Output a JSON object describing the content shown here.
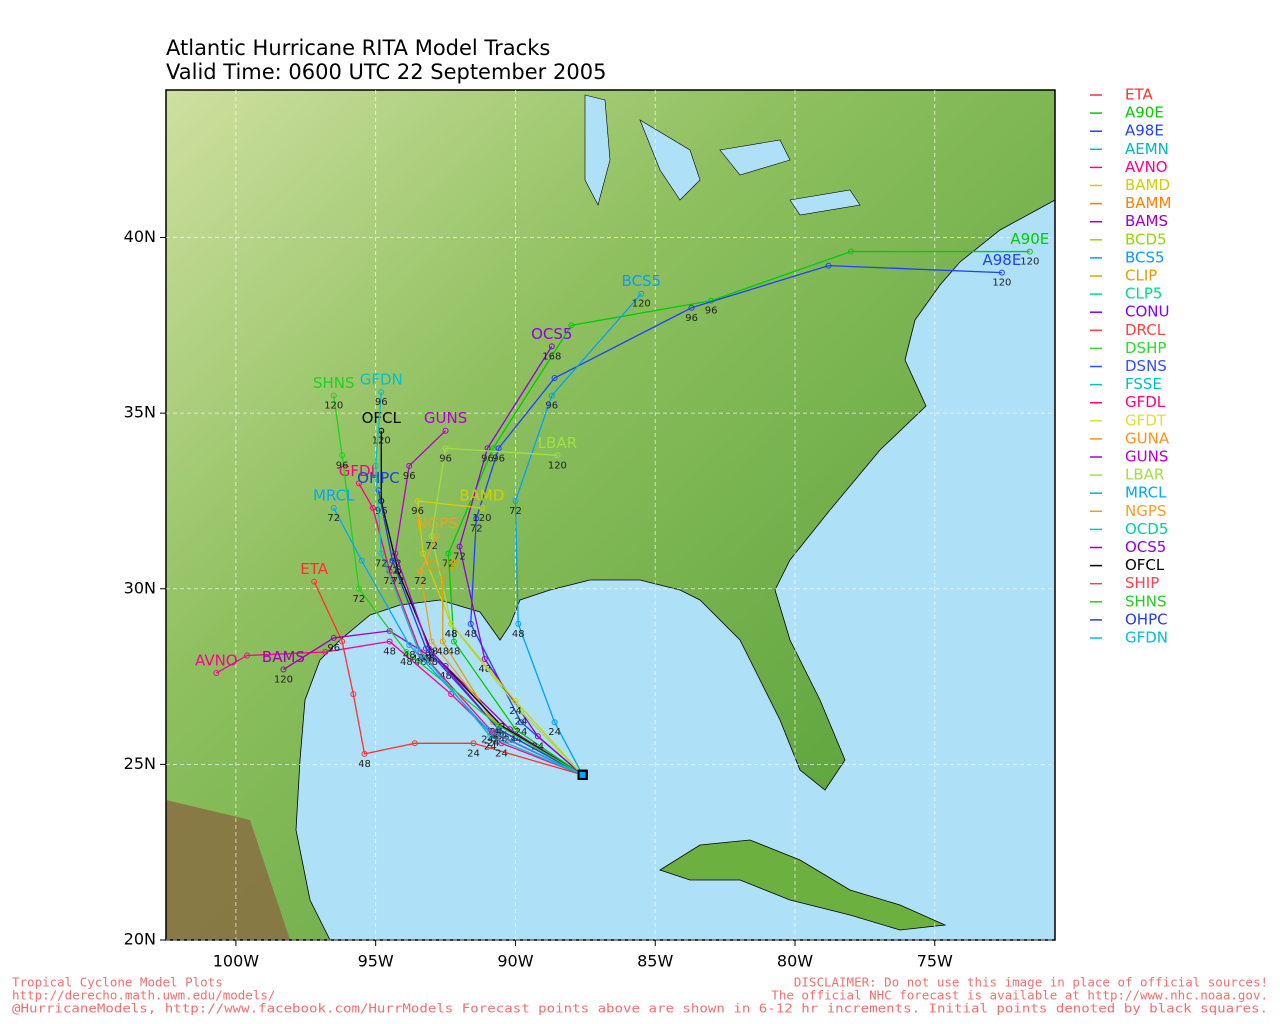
{
  "title": [
    "Atlantic Hurricane RITA Model Tracks",
    "Valid Time: 0600 UTC 22 September 2005"
  ],
  "map": {
    "lonlim": [
      -102.5,
      -70.7
    ],
    "latlim": [
      20,
      44.2
    ],
    "lonticks": [
      {
        "value": -100,
        "label": "100W"
      },
      {
        "value": -95,
        "label": "95W"
      },
      {
        "value": -90,
        "label": "90W"
      },
      {
        "value": -85,
        "label": "85W"
      },
      {
        "value": -80,
        "label": "80W"
      },
      {
        "value": -75,
        "label": "75W"
      }
    ],
    "latticks": [
      {
        "value": 20,
        "label": "20N"
      },
      {
        "value": 25,
        "label": "25N"
      },
      {
        "value": 30,
        "label": "30N"
      },
      {
        "value": 35,
        "label": "35N"
      },
      {
        "value": 40,
        "label": "40N"
      }
    ],
    "grid": true
  },
  "legend": [
    {
      "name": "ETA",
      "color": "#ff3030"
    },
    {
      "name": "A90E",
      "color": "#00cc00"
    },
    {
      "name": "A98E",
      "color": "#2040ff"
    },
    {
      "name": "AEMN",
      "color": "#00b8b8"
    },
    {
      "name": "AVNO",
      "color": "#ff0090"
    },
    {
      "name": "BAMD",
      "color": "#d0d000"
    },
    {
      "name": "BAMM",
      "color": "#ff8000"
    },
    {
      "name": "BAMS",
      "color": "#a000c0"
    },
    {
      "name": "BCD5",
      "color": "#90d800"
    },
    {
      "name": "BCS5",
      "color": "#00a0ff"
    },
    {
      "name": "CLIP",
      "color": "#e0a000"
    },
    {
      "name": "CLP5",
      "color": "#00d890"
    },
    {
      "name": "CONU",
      "color": "#8000ff"
    },
    {
      "name": "DRCL",
      "color": "#ff4040"
    },
    {
      "name": "DSHP",
      "color": "#30d830"
    },
    {
      "name": "DSNS",
      "color": "#3050ff"
    },
    {
      "name": "FSSE",
      "color": "#00c0c0"
    },
    {
      "name": "GFDL",
      "color": "#ff0080"
    },
    {
      "name": "GFDT",
      "color": "#e0e030"
    },
    {
      "name": "GUNA",
      "color": "#ff9020"
    },
    {
      "name": "GUNS",
      "color": "#b000d0"
    },
    {
      "name": "LBAR",
      "color": "#a0e040"
    },
    {
      "name": "MRCL",
      "color": "#00a8ff"
    },
    {
      "name": "NGPS",
      "color": "#f0a020"
    },
    {
      "name": "OCD5",
      "color": "#00d0a0"
    },
    {
      "name": "OCS5",
      "color": "#9000e0"
    },
    {
      "name": "OFCL",
      "color": "#000000"
    },
    {
      "name": "SHIP",
      "color": "#ff4050"
    },
    {
      "name": "SHNS",
      "color": "#20d020"
    },
    {
      "name": "OHPC",
      "color": "#2040e0"
    },
    {
      "name": "GFDN",
      "color": "#00c0d0"
    }
  ],
  "tracks": [
    {
      "name": "ETA",
      "lon": [
        -87.6,
        -91.5,
        -93.6,
        -95.4,
        -95.8,
        -96.2,
        -97.2
      ],
      "lat": [
        24.7,
        25.6,
        25.6,
        25.3,
        27,
        28.5,
        30.2
      ],
      "hours": [
        null,
        24,
        null,
        48,
        null,
        null,
        null
      ]
    },
    {
      "name": "AVNO",
      "lon": [
        -87.6,
        -90.5,
        -92.3,
        -94.5,
        -96.8,
        -99.6,
        -100.7
      ],
      "lat": [
        24.7,
        25.6,
        27,
        28.5,
        28.2,
        28.1,
        27.6
      ],
      "hours": [
        null,
        24,
        null,
        48,
        null,
        null,
        null
      ]
    },
    {
      "name": "BAMS",
      "lon": [
        -87.6,
        -90.2,
        -92.5,
        -94.5,
        -96.5,
        -98.3
      ],
      "lat": [
        24.7,
        26,
        27.8,
        28.8,
        28.6,
        27.7
      ],
      "hours": [
        null,
        24,
        48,
        null,
        96,
        120
      ]
    },
    {
      "name": "A90E",
      "lon": [
        -87.6,
        -90,
        -92.2,
        -92.4,
        -90.8,
        -88,
        -83,
        -78,
        -71.6
      ],
      "lat": [
        24.7,
        26,
        28.5,
        31,
        34,
        37.5,
        38.2,
        39.6,
        39.6
      ],
      "hours": [
        null,
        24,
        48,
        72,
        null,
        null,
        96,
        null,
        120
      ]
    },
    {
      "name": "A98E",
      "lon": [
        -87.6,
        -89.8,
        -91.6,
        -91.4,
        -90.6,
        -88.6,
        -83.7,
        -78.8,
        -72.6
      ],
      "lat": [
        24.7,
        26.2,
        29,
        32,
        34,
        36,
        38,
        39.2,
        39
      ],
      "hours": [
        null,
        24,
        48,
        72,
        96,
        null,
        96,
        null,
        120
      ]
    },
    {
      "name": "BCS5",
      "lon": [
        -87.6,
        -88.6,
        -89.9,
        -90,
        -88.7,
        -85.5
      ],
      "lat": [
        24.7,
        26.2,
        29,
        32.5,
        35.5,
        38.4
      ],
      "hours": [
        null,
        24,
        48,
        72,
        96,
        120
      ]
    },
    {
      "name": "OCS5",
      "lon": [
        -87.6,
        -89.2,
        -91.1,
        -92,
        -91,
        -88.7
      ],
      "lat": [
        24.7,
        25.8,
        28,
        31.2,
        34,
        36.9
      ],
      "hours": [
        null,
        24,
        48,
        72,
        96,
        168
      ]
    },
    {
      "name": "LBAR",
      "lon": [
        -87.6,
        -89.8,
        -92.3,
        -93,
        -92.5,
        -88.5
      ],
      "lat": [
        24.7,
        26.5,
        29,
        31.5,
        34,
        33.8
      ],
      "hours": [
        null,
        24,
        48,
        72,
        96,
        120
      ]
    },
    {
      "name": "BAMD",
      "lon": [
        -87.6,
        -90,
        -92.3,
        -93.3,
        -93.5,
        -91.2
      ],
      "lat": [
        24.7,
        26.8,
        29,
        31,
        32.5,
        32.3
      ],
      "hours": [
        null,
        24,
        48,
        null,
        96,
        120
      ]
    },
    {
      "name": "NGPS",
      "lon": [
        -87.6,
        -90.7,
        -93,
        -93.4,
        -92.8
      ],
      "lat": [
        24.7,
        26.2,
        28.5,
        30.5,
        31.5
      ],
      "hours": [
        null,
        24,
        48,
        72,
        null
      ]
    },
    {
      "name": "CLIP",
      "lon": [
        -87.6,
        -90.8,
        -92.6,
        -92.6
      ],
      "lat": [
        24.7,
        26.2,
        28.5,
        30.3
      ],
      "hours": [
        null,
        24,
        48,
        null
      ]
    },
    {
      "name": "OFCL",
      "lon": [
        -87.6,
        -90.5,
        -93,
        -94.2,
        -94.8,
        -94.8
      ],
      "lat": [
        24.7,
        26.1,
        28.2,
        30.5,
        32.5,
        34.5
      ],
      "hours": [
        null,
        24,
        48,
        72,
        96,
        120
      ]
    },
    {
      "name": "GUNS",
      "lon": [
        -87.6,
        -90.6,
        -93.1,
        -94.3,
        -93.8,
        -92.5
      ],
      "lat": [
        24.7,
        26,
        28.3,
        31,
        33.5,
        34.5
      ],
      "hours": [
        null,
        24,
        48,
        72,
        96,
        null
      ]
    },
    {
      "name": "GFDL",
      "lon": [
        -87.6,
        -90.8,
        -93.4,
        -94.5,
        -95.1,
        -95.6
      ],
      "lat": [
        24.7,
        25.9,
        28.2,
        30.5,
        32.3,
        33
      ],
      "hours": [
        null,
        24,
        48,
        72,
        null,
        null
      ]
    },
    {
      "name": "OHPC",
      "lon": [
        -87.6,
        -90.6,
        -93.2,
        -94.4,
        -94.9
      ],
      "lat": [
        24.7,
        26,
        28.3,
        30.8,
        32.8
      ],
      "hours": [
        null,
        24,
        48,
        72,
        null
      ]
    },
    {
      "name": "GFDN",
      "lon": [
        -87.6,
        -90.9,
        -93.5,
        -94.8,
        -95,
        -94.8
      ],
      "lat": [
        24.7,
        25.8,
        28.3,
        31,
        33.5,
        35.6
      ],
      "hours": [
        null,
        24,
        48,
        72,
        null,
        96
      ]
    },
    {
      "name": "SHNS",
      "lon": [
        -87.6,
        -90.6,
        -93.9,
        -95.6,
        -96.2,
        -96.5
      ],
      "lat": [
        24.7,
        26.1,
        28.2,
        30,
        33.8,
        35.5
      ],
      "hours": [
        null,
        24,
        48,
        72,
        96,
        120
      ]
    },
    {
      "name": "MRCL",
      "lon": [
        -87.6,
        -91,
        -93.8,
        -95.5,
        -96.5
      ],
      "lat": [
        24.7,
        26,
        28.4,
        30.8,
        32.3
      ],
      "hours": [
        null,
        24,
        48,
        null,
        72
      ]
    }
  ],
  "footer": {
    "left": [
      "Tropical Cyclone Model Plots",
      "http://derecho.math.uwm.edu/models/"
    ],
    "right": [
      "DISCLAIMER: Do not use this image in place of official sources!",
      "The official NHC forecast is available at http://www.nhc.noaa.gov."
    ],
    "bottom": "@HurricaneModels, http://www.facebook.com/HurrModels  Forecast points above are shown in 6-12 hr increments. Initial points denoted by black squares."
  }
}
